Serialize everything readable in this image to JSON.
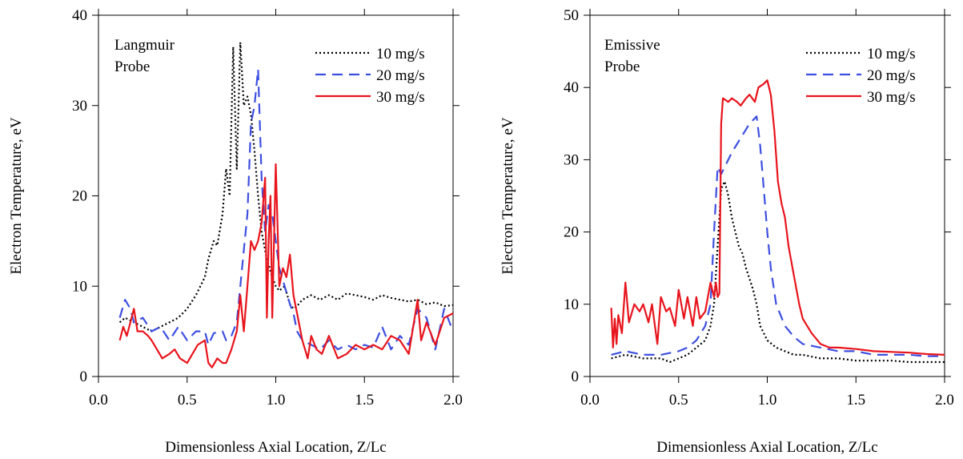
{
  "chart_data": [
    {
      "type": "line",
      "annotation": [
        "Langmuir",
        "Probe"
      ],
      "xlabel": "Dimensionless Axial Location, Z/Lc",
      "ylabel": "Electron Temperature, eV",
      "xlim": [
        0.0,
        2.0
      ],
      "ylim": [
        0,
        40
      ],
      "xticks": [
        0.0,
        0.5,
        1.0,
        1.5,
        2.0
      ],
      "xtick_labels": [
        "0.0",
        "0.5",
        "1.0",
        "1.5",
        "2.0"
      ],
      "yticks": [
        0,
        10,
        20,
        30,
        40
      ],
      "ytick_labels": [
        "0",
        "10",
        "20",
        "30",
        "40"
      ],
      "legend_position": "top-right",
      "series": [
        {
          "name": "10 mg/s",
          "color": "#000000",
          "style": "dotted",
          "x": [
            0.12,
            0.15,
            0.2,
            0.25,
            0.3,
            0.35,
            0.4,
            0.45,
            0.5,
            0.55,
            0.6,
            0.62,
            0.65,
            0.67,
            0.7,
            0.72,
            0.74,
            0.76,
            0.78,
            0.8,
            0.82,
            0.84,
            0.86,
            0.88,
            0.9,
            0.92,
            0.95,
            0.98,
            1.0,
            1.02,
            1.05,
            1.08,
            1.1,
            1.12,
            1.15,
            1.2,
            1.25,
            1.3,
            1.35,
            1.4,
            1.45,
            1.5,
            1.55,
            1.6,
            1.65,
            1.7,
            1.75,
            1.8,
            1.85,
            1.9,
            1.95,
            2.0
          ],
          "y": [
            6.0,
            6.5,
            6.0,
            5.5,
            5.0,
            5.5,
            6.0,
            6.5,
            7.5,
            9.0,
            11.0,
            13.0,
            15.0,
            14.5,
            18.0,
            23.0,
            20.0,
            36.5,
            23.0,
            37.0,
            30.0,
            31.0,
            29.0,
            25.0,
            20.0,
            16.0,
            13.0,
            11.0,
            10.0,
            9.5,
            10.0,
            8.0,
            7.5,
            7.8,
            8.5,
            9.0,
            8.5,
            9.0,
            8.5,
            9.2,
            9.0,
            8.8,
            8.5,
            9.0,
            8.7,
            8.5,
            8.3,
            8.5,
            8.0,
            8.2,
            7.8,
            7.9
          ]
        },
        {
          "name": "20 mg/s",
          "color": "#3d4fe0",
          "style": "dashed",
          "x": [
            0.12,
            0.15,
            0.18,
            0.2,
            0.25,
            0.3,
            0.35,
            0.4,
            0.45,
            0.5,
            0.55,
            0.6,
            0.62,
            0.65,
            0.7,
            0.72,
            0.75,
            0.78,
            0.8,
            0.82,
            0.84,
            0.86,
            0.88,
            0.9,
            0.92,
            0.94,
            0.96,
            0.98,
            1.0,
            1.02,
            1.05,
            1.08,
            1.1,
            1.12,
            1.15,
            1.2,
            1.25,
            1.3,
            1.35,
            1.4,
            1.45,
            1.5,
            1.55,
            1.6,
            1.65,
            1.7,
            1.75,
            1.8,
            1.85,
            1.9,
            1.95,
            2.0
          ],
          "y": [
            6.5,
            8.5,
            7.5,
            6.0,
            6.5,
            5.0,
            5.5,
            4.0,
            5.5,
            4.0,
            5.0,
            5.0,
            3.5,
            4.8,
            5.0,
            4.0,
            4.5,
            6.0,
            10.0,
            14.0,
            18.0,
            28.0,
            30.0,
            34.0,
            22.0,
            16.0,
            19.0,
            18.0,
            15.0,
            12.0,
            10.0,
            8.0,
            7.0,
            5.0,
            4.0,
            3.5,
            3.0,
            4.0,
            3.0,
            3.5,
            3.0,
            3.5,
            3.2,
            5.5,
            3.0,
            4.5,
            3.5,
            7.5,
            6.5,
            3.0,
            7.5,
            5.0
          ]
        },
        {
          "name": "30 mg/s",
          "color": "#e8141c",
          "style": "solid",
          "x": [
            0.12,
            0.14,
            0.16,
            0.18,
            0.2,
            0.22,
            0.25,
            0.28,
            0.3,
            0.33,
            0.36,
            0.4,
            0.43,
            0.46,
            0.5,
            0.53,
            0.56,
            0.6,
            0.62,
            0.64,
            0.67,
            0.7,
            0.72,
            0.75,
            0.78,
            0.8,
            0.82,
            0.84,
            0.86,
            0.88,
            0.9,
            0.92,
            0.94,
            0.95,
            0.96,
            0.97,
            0.98,
            1.0,
            1.02,
            1.04,
            1.06,
            1.08,
            1.1,
            1.12,
            1.15,
            1.18,
            1.2,
            1.23,
            1.26,
            1.3,
            1.35,
            1.4,
            1.45,
            1.5,
            1.55,
            1.6,
            1.65,
            1.7,
            1.75,
            1.8,
            1.82,
            1.85,
            1.9,
            1.95,
            2.0
          ],
          "y": [
            4.0,
            5.5,
            4.5,
            6.0,
            7.5,
            5.0,
            5.0,
            4.5,
            4.0,
            3.0,
            2.0,
            2.5,
            3.0,
            2.0,
            1.5,
            2.5,
            3.5,
            4.0,
            1.5,
            1.0,
            2.0,
            1.5,
            1.5,
            3.0,
            5.0,
            9.0,
            5.0,
            10.0,
            15.0,
            14.0,
            15.0,
            17.0,
            22.0,
            6.5,
            15.0,
            20.0,
            6.5,
            23.5,
            10.0,
            12.0,
            11.0,
            13.5,
            9.0,
            7.0,
            4.0,
            2.0,
            4.5,
            3.0,
            2.5,
            4.5,
            2.0,
            2.5,
            3.5,
            3.0,
            3.5,
            3.0,
            4.5,
            4.0,
            2.5,
            8.5,
            4.0,
            6.0,
            3.5,
            6.5,
            7.0
          ]
        }
      ]
    },
    {
      "type": "line",
      "annotation": [
        "Emissive",
        "Probe"
      ],
      "xlabel": "Dimensionless Axial Location, Z/Lc",
      "ylabel": "Electron Temperature, eV",
      "xlim": [
        0.0,
        2.0
      ],
      "ylim": [
        0,
        50
      ],
      "xticks": [
        0.0,
        0.5,
        1.0,
        1.5,
        2.0
      ],
      "xtick_labels": [
        "0.0",
        "0.5",
        "1.0",
        "1.5",
        "2.0"
      ],
      "yticks": [
        0,
        10,
        20,
        30,
        40,
        50
      ],
      "ytick_labels": [
        "0",
        "10",
        "20",
        "30",
        "40",
        "50"
      ],
      "legend_position": "top-right",
      "series": [
        {
          "name": "10 mg/s",
          "color": "#000000",
          "style": "dotted",
          "x": [
            0.12,
            0.2,
            0.3,
            0.4,
            0.45,
            0.5,
            0.55,
            0.6,
            0.65,
            0.68,
            0.7,
            0.72,
            0.74,
            0.76,
            0.78,
            0.8,
            0.82,
            0.84,
            0.86,
            0.88,
            0.9,
            0.92,
            0.94,
            0.96,
            0.98,
            1.0,
            1.05,
            1.1,
            1.15,
            1.2,
            1.3,
            1.4,
            1.5,
            1.6,
            1.7,
            1.8,
            1.9,
            2.0
          ],
          "y": [
            2.5,
            3.0,
            2.5,
            2.5,
            2.0,
            2.5,
            3.0,
            4.0,
            5.0,
            7.0,
            10.0,
            18.0,
            26.0,
            27.0,
            25.0,
            22.0,
            20.0,
            18.0,
            17.0,
            15.0,
            13.5,
            12.0,
            10.0,
            7.0,
            6.0,
            5.0,
            4.0,
            3.5,
            3.0,
            3.0,
            2.5,
            2.5,
            2.2,
            2.2,
            2.2,
            2.0,
            2.0,
            2.0
          ]
        },
        {
          "name": "20 mg/s",
          "color": "#3d4fe0",
          "style": "dashed",
          "x": [
            0.12,
            0.2,
            0.3,
            0.4,
            0.5,
            0.55,
            0.6,
            0.65,
            0.68,
            0.7,
            0.72,
            0.74,
            0.76,
            0.78,
            0.8,
            0.85,
            0.9,
            0.94,
            0.96,
            0.98,
            1.0,
            1.02,
            1.05,
            1.1,
            1.15,
            1.2,
            1.3,
            1.4,
            1.5,
            1.6,
            1.7,
            1.8,
            1.9,
            2.0
          ],
          "y": [
            3.0,
            3.5,
            3.0,
            3.0,
            3.5,
            4.0,
            5.0,
            7.0,
            10.0,
            20.0,
            29.0,
            28.0,
            29.0,
            30.0,
            31.0,
            33.0,
            35.0,
            36.0,
            32.0,
            26.0,
            20.0,
            15.0,
            10.0,
            7.0,
            5.5,
            4.5,
            4.0,
            3.5,
            3.5,
            3.0,
            3.0,
            3.0,
            2.8,
            2.8
          ]
        },
        {
          "name": "30 mg/s",
          "color": "#e8141c",
          "style": "solid",
          "x": [
            0.12,
            0.13,
            0.14,
            0.15,
            0.16,
            0.18,
            0.2,
            0.22,
            0.25,
            0.28,
            0.3,
            0.33,
            0.35,
            0.38,
            0.4,
            0.43,
            0.45,
            0.48,
            0.5,
            0.53,
            0.55,
            0.58,
            0.6,
            0.62,
            0.65,
            0.68,
            0.7,
            0.71,
            0.72,
            0.73,
            0.74,
            0.75,
            0.78,
            0.8,
            0.83,
            0.85,
            0.88,
            0.9,
            0.93,
            0.95,
            0.98,
            1.0,
            1.02,
            1.04,
            1.06,
            1.08,
            1.1,
            1.12,
            1.15,
            1.18,
            1.2,
            1.25,
            1.3,
            1.35,
            1.4,
            1.5,
            1.6,
            1.7,
            1.8,
            1.9,
            2.0
          ],
          "y": [
            9.5,
            4.0,
            8.0,
            4.5,
            8.5,
            6.0,
            13.0,
            7.5,
            10.0,
            9.0,
            10.0,
            7.5,
            10.0,
            4.5,
            11.0,
            9.0,
            9.5,
            7.0,
            12.0,
            8.0,
            11.0,
            7.0,
            11.0,
            8.0,
            9.0,
            13.0,
            11.0,
            13.0,
            11.0,
            11.5,
            35.0,
            38.5,
            38.0,
            38.5,
            38.0,
            37.5,
            38.5,
            39.0,
            38.0,
            40.0,
            40.5,
            41.0,
            39.0,
            34.0,
            27.0,
            24.0,
            22.0,
            18.0,
            14.0,
            10.0,
            8.0,
            6.0,
            4.5,
            4.0,
            4.0,
            3.8,
            3.5,
            3.4,
            3.3,
            3.1,
            3.0
          ]
        }
      ]
    }
  ]
}
